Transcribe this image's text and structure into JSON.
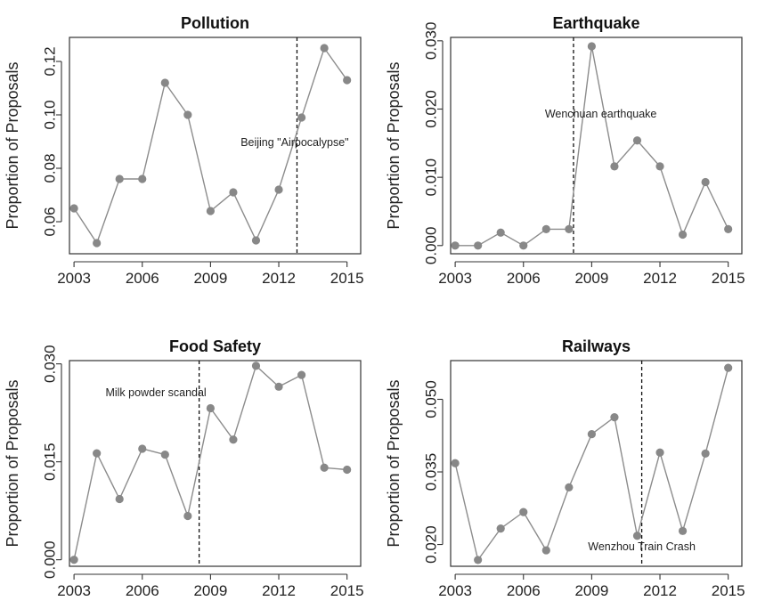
{
  "chart_data": [
    {
      "type": "line",
      "title": "Pollution",
      "xlabel": "",
      "ylabel": "Proportion of Proposals",
      "x": [
        2003,
        2004,
        2005,
        2006,
        2007,
        2008,
        2009,
        2010,
        2011,
        2012,
        2013,
        2014,
        2015
      ],
      "values": [
        0.065,
        0.052,
        0.076,
        0.076,
        0.112,
        0.1,
        0.064,
        0.071,
        0.053,
        0.072,
        0.099,
        0.125,
        0.113
      ],
      "xlim": [
        2002.8,
        2015.6
      ],
      "ylim": [
        0.048,
        0.129
      ],
      "xticks": [
        2003,
        2006,
        2009,
        2012,
        2015
      ],
      "yticks": [
        0.06,
        0.08,
        0.1,
        0.12
      ],
      "ytick_labels": [
        "0.06",
        "0.08",
        "0.10",
        "0.12"
      ],
      "event": {
        "x": 2012.8,
        "label": "Beijing \"Airpocalypse\""
      }
    },
    {
      "type": "line",
      "title": "Earthquake",
      "xlabel": "",
      "ylabel": "Proportion of Proposals",
      "x": [
        2003,
        2004,
        2005,
        2006,
        2007,
        2008,
        2009,
        2010,
        2011,
        2012,
        2013,
        2014,
        2015
      ],
      "values": [
        0.0,
        0.0,
        0.0019,
        0.0,
        0.0024,
        0.0024,
        0.0292,
        0.0116,
        0.0154,
        0.0116,
        0.0016,
        0.0093,
        0.0024
      ],
      "xlim": [
        2002.8,
        2015.6
      ],
      "ylim": [
        -0.0012,
        0.0305
      ],
      "xticks": [
        2003,
        2006,
        2009,
        2012,
        2015
      ],
      "yticks": [
        0.0,
        0.01,
        0.02,
        0.03
      ],
      "ytick_labels": [
        "0.000",
        "0.010",
        "0.020",
        "0.030"
      ],
      "event": {
        "x": 2008.2,
        "label": "Wenchuan earthquake"
      }
    },
    {
      "type": "line",
      "title": "Food Safety",
      "xlabel": "",
      "ylabel": "Proportion of Proposals",
      "x": [
        2003,
        2004,
        2005,
        2006,
        2007,
        2008,
        2009,
        2010,
        2011,
        2012,
        2013,
        2014,
        2015
      ],
      "values": [
        0.0,
        0.0163,
        0.0093,
        0.017,
        0.0161,
        0.0067,
        0.0232,
        0.0184,
        0.0297,
        0.0265,
        0.0283,
        0.0141,
        0.0138
      ],
      "xlim": [
        2002.8,
        2015.6
      ],
      "ylim": [
        -0.001,
        0.0305
      ],
      "xticks": [
        2003,
        2006,
        2009,
        2012,
        2015
      ],
      "yticks": [
        0.0,
        0.015,
        0.03
      ],
      "ytick_labels": [
        "0.000",
        "0.015",
        "0.030"
      ],
      "event": {
        "x": 2008.5,
        "label": "Milk powder scandal"
      }
    },
    {
      "type": "line",
      "title": "Railways",
      "xlabel": "",
      "ylabel": "Proportion of Proposals",
      "x": [
        2003,
        2004,
        2005,
        2006,
        2007,
        2008,
        2009,
        2010,
        2011,
        2012,
        2013,
        2014,
        2015
      ],
      "values": [
        0.0368,
        0.0168,
        0.0233,
        0.0267,
        0.0188,
        0.0318,
        0.0428,
        0.0463,
        0.0218,
        0.039,
        0.0228,
        0.0388,
        0.0565
      ],
      "xlim": [
        2002.8,
        2015.6
      ],
      "ylim": [
        0.0155,
        0.058
      ],
      "xticks": [
        2003,
        2006,
        2009,
        2012,
        2015
      ],
      "yticks": [
        0.02,
        0.035,
        0.05
      ],
      "ytick_labels": [
        "0.020",
        "0.035",
        "0.050"
      ],
      "event": {
        "x": 2011.2,
        "label": "Wenzhou Train Crash"
      }
    }
  ]
}
